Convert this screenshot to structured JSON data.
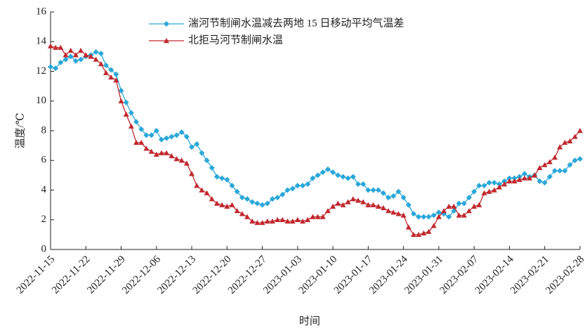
{
  "chart_data": {
    "type": "line",
    "xlabel": "时间",
    "ylabel": "温度/℃",
    "categories": [
      "2022-11-15",
      null,
      null,
      null,
      null,
      null,
      null,
      "2022-11-22",
      null,
      null,
      null,
      null,
      null,
      null,
      "2022-11-29",
      null,
      null,
      null,
      null,
      null,
      null,
      "2022-12-06",
      null,
      null,
      null,
      null,
      null,
      null,
      "2022-12-13",
      null,
      null,
      null,
      null,
      null,
      null,
      "2022-12-20",
      null,
      null,
      null,
      null,
      null,
      null,
      "2022-12-27",
      null,
      null,
      null,
      null,
      null,
      null,
      "2023-01-03",
      null,
      null,
      null,
      null,
      null,
      null,
      "2023-01-10",
      null,
      null,
      null,
      null,
      null,
      null,
      "2023-01-17",
      null,
      null,
      null,
      null,
      null,
      null,
      "2023-01-24",
      null,
      null,
      null,
      null,
      null,
      null,
      "2023-01-31",
      null,
      null,
      null,
      null,
      null,
      null,
      "2023-02-07",
      null,
      null,
      null,
      null,
      null,
      null,
      "2023-02-14",
      null,
      null,
      null,
      null,
      null,
      null,
      "2023-02-21",
      null,
      null,
      null,
      null,
      null,
      null,
      "2023-02-28"
    ],
    "ylim": [
      0,
      16
    ],
    "yticks": [
      0,
      2,
      4,
      6,
      8,
      10,
      12,
      14,
      16
    ],
    "series": [
      {
        "name": "湍河节制闸水温减去两地 15 日移动平均气温差",
        "color": "#2aa7d8",
        "marker": "diamond",
        "values": [
          12.3,
          12.2,
          12.6,
          12.8,
          13.0,
          12.7,
          12.8,
          13.0,
          13.1,
          13.3,
          13.2,
          12.4,
          12.1,
          11.8,
          10.7,
          9.9,
          9.2,
          8.6,
          8.1,
          7.7,
          7.7,
          8.0,
          7.4,
          7.5,
          7.6,
          7.7,
          7.9,
          7.6,
          6.9,
          7.1,
          6.5,
          6.0,
          5.5,
          4.9,
          4.8,
          4.7,
          4.3,
          3.9,
          3.5,
          3.4,
          3.2,
          3.1,
          3.0,
          3.1,
          3.4,
          3.5,
          3.7,
          4.0,
          4.1,
          4.3,
          4.3,
          4.4,
          4.8,
          5.0,
          5.2,
          5.4,
          5.2,
          5.0,
          4.9,
          4.8,
          4.9,
          4.4,
          4.4,
          4.0,
          4.0,
          4.0,
          3.8,
          3.5,
          3.6,
          3.9,
          3.5,
          3.0,
          2.4,
          2.2,
          2.2,
          2.2,
          2.3,
          2.5,
          2.4,
          2.2,
          2.6,
          3.1,
          3.1,
          3.5,
          3.9,
          4.3,
          4.3,
          4.5,
          4.5,
          4.4,
          4.6,
          4.8,
          4.8,
          4.9,
          5.1,
          4.9,
          5.0,
          4.6,
          4.5,
          4.9,
          5.3,
          5.3,
          5.3,
          5.7,
          6.0,
          6.1
        ]
      },
      {
        "name": "北拒马河节制闸水温",
        "color": "#c0282d",
        "marker": "triangle",
        "values": [
          13.7,
          13.6,
          13.6,
          13.1,
          13.4,
          13.1,
          13.4,
          13.1,
          13.0,
          12.8,
          12.5,
          11.9,
          11.6,
          11.4,
          10.0,
          9.1,
          8.3,
          7.2,
          7.2,
          6.8,
          6.6,
          6.4,
          6.5,
          6.5,
          6.3,
          6.1,
          6.0,
          5.8,
          5.1,
          4.3,
          4.0,
          3.8,
          3.4,
          3.1,
          3.0,
          2.9,
          3.0,
          2.6,
          2.4,
          2.2,
          1.9,
          1.8,
          1.8,
          1.9,
          1.9,
          2.0,
          2.0,
          1.9,
          1.9,
          2.0,
          1.9,
          2.0,
          2.2,
          2.2,
          2.2,
          2.6,
          2.9,
          3.1,
          3.0,
          3.2,
          3.4,
          3.3,
          3.2,
          3.0,
          3.0,
          2.9,
          2.8,
          2.6,
          2.5,
          2.4,
          2.3,
          1.5,
          1.0,
          1.0,
          1.1,
          1.2,
          1.6,
          2.2,
          2.6,
          2.9,
          2.9,
          2.3,
          2.3,
          2.6,
          2.9,
          3.0,
          3.8,
          3.9,
          4.0,
          4.2,
          4.4,
          4.6,
          4.6,
          4.7,
          4.8,
          4.8,
          5.0,
          5.5,
          5.7,
          5.9,
          6.2,
          6.9,
          7.2,
          7.3,
          7.6,
          8.0
        ]
      }
    ]
  }
}
